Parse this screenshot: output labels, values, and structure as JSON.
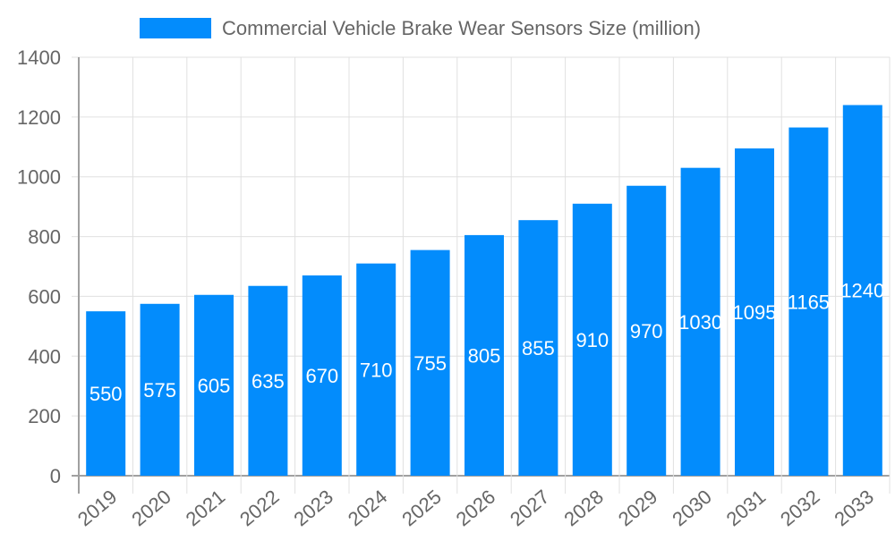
{
  "chart_data": {
    "type": "bar",
    "title": "",
    "xlabel": "",
    "ylabel": "",
    "categories": [
      "2019",
      "2020",
      "2021",
      "2022",
      "2023",
      "2024",
      "2025",
      "2026",
      "2027",
      "2028",
      "2029",
      "2030",
      "2031",
      "2032",
      "2033"
    ],
    "series": [
      {
        "name": "Commercial Vehicle Brake Wear Sensors Size (million)",
        "values": [
          550,
          575,
          605,
          635,
          670,
          710,
          755,
          805,
          855,
          910,
          970,
          1030,
          1095,
          1165,
          1240
        ]
      }
    ],
    "ylim": [
      0,
      1400
    ],
    "yticks": [
      0,
      200,
      400,
      600,
      800,
      1000,
      1200,
      1400
    ],
    "grid": true,
    "legend": "top",
    "data_labels": "inside-center",
    "colors": {
      "bar": "#038cfc",
      "grid": "#e0e0e0",
      "axis": "#a0a0a0",
      "text": "#666666",
      "label": "#ffffff"
    }
  }
}
